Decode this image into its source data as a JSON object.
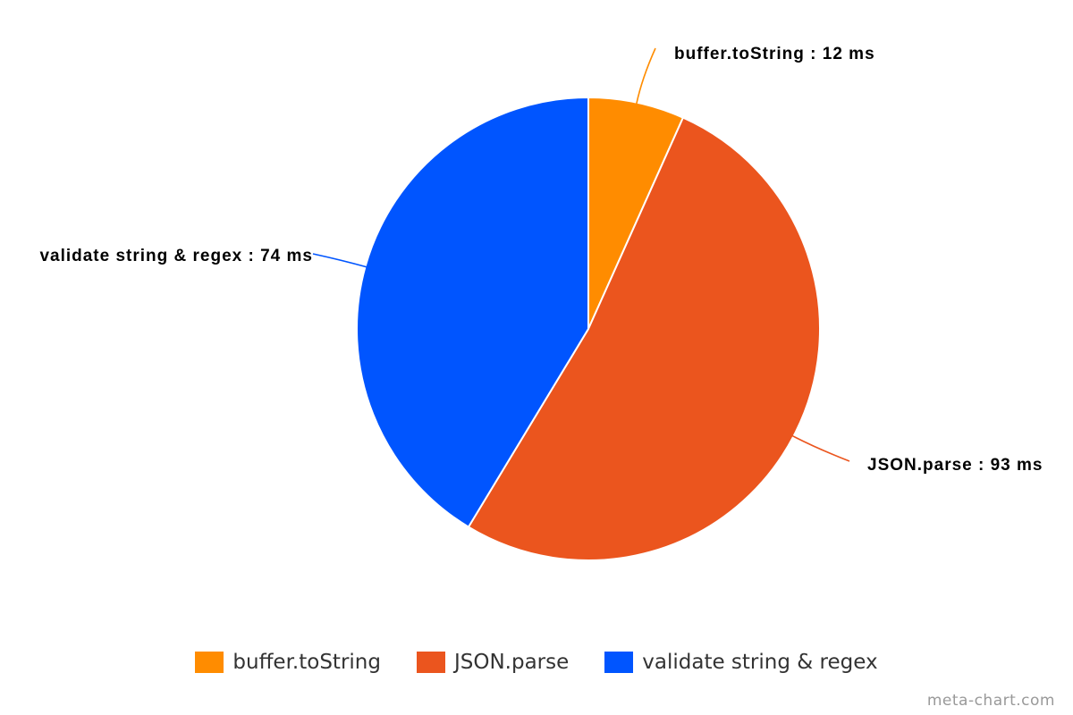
{
  "chart_data": {
    "type": "pie",
    "title": "",
    "unit": "ms",
    "slices": [
      {
        "name": "buffer.toString",
        "value": 12,
        "color": "#FF8C00",
        "label": "buffer.toString : 12 ms"
      },
      {
        "name": "JSON.parse",
        "value": 93,
        "color": "#EB551E",
        "label": "JSON.parse : 93 ms"
      },
      {
        "name": "validate string & regex",
        "value": 74,
        "color": "#0055FF",
        "label": "validate string & regex : 74 ms"
      }
    ],
    "legend": {
      "position": "bottom"
    }
  },
  "watermark": "meta-chart.com"
}
